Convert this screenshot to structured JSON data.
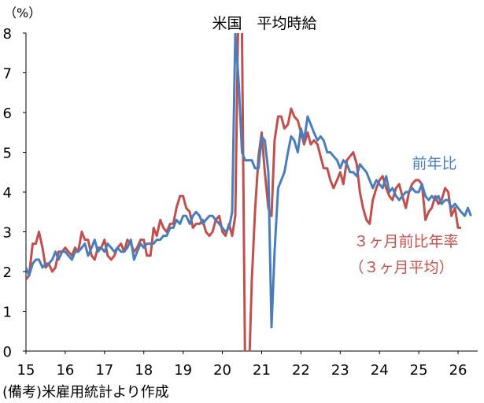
{
  "chart_data": {
    "type": "line",
    "title": "米国　平均時給",
    "ylabel": "（%）",
    "xlabel": "",
    "ylim": [
      0,
      8
    ],
    "yticks": [
      "0",
      "1",
      "2",
      "3",
      "4",
      "5",
      "6",
      "7",
      "8"
    ],
    "x_range": [
      2015.0,
      2026.5
    ],
    "xticks": [
      {
        "label": "15",
        "x": 2015.0
      },
      {
        "label": "16",
        "x": 2016.0
      },
      {
        "label": "17",
        "x": 2017.0
      },
      {
        "label": "18",
        "x": 2018.0
      },
      {
        "label": "19",
        "x": 2019.0
      },
      {
        "label": "20",
        "x": 2020.0
      },
      {
        "label": "21",
        "x": 2021.0
      },
      {
        "label": "22",
        "x": 2022.0
      },
      {
        "label": "23",
        "x": 2023.0
      },
      {
        "label": "24",
        "x": 2024.0
      },
      {
        "label": "25",
        "x": 2025.0
      },
      {
        "label": "26",
        "x": 2026.0
      }
    ],
    "grid": false,
    "series": [
      {
        "name": "前年比",
        "color": "#4a7ebb",
        "values": [
          [
            2015.0,
            2.1
          ],
          [
            2015.08,
            1.9
          ],
          [
            2015.17,
            2.2
          ],
          [
            2015.25,
            2.3
          ],
          [
            2015.33,
            2.3
          ],
          [
            2015.42,
            2.1
          ],
          [
            2015.5,
            2.2
          ],
          [
            2015.58,
            2.2
          ],
          [
            2015.67,
            2.3
          ],
          [
            2015.75,
            2.5
          ],
          [
            2015.83,
            2.3
          ],
          [
            2015.92,
            2.5
          ],
          [
            2016.0,
            2.5
          ],
          [
            2016.08,
            2.4
          ],
          [
            2016.17,
            2.3
          ],
          [
            2016.25,
            2.5
          ],
          [
            2016.33,
            2.5
          ],
          [
            2016.42,
            2.6
          ],
          [
            2016.5,
            2.7
          ],
          [
            2016.58,
            2.4
          ],
          [
            2016.67,
            2.6
          ],
          [
            2016.75,
            2.8
          ],
          [
            2016.83,
            2.5
          ],
          [
            2016.92,
            2.6
          ],
          [
            2017.0,
            2.5
          ],
          [
            2017.08,
            2.7
          ],
          [
            2017.17,
            2.6
          ],
          [
            2017.25,
            2.5
          ],
          [
            2017.33,
            2.6
          ],
          [
            2017.42,
            2.5
          ],
          [
            2017.5,
            2.5
          ],
          [
            2017.58,
            2.6
          ],
          [
            2017.67,
            2.8
          ],
          [
            2017.75,
            2.3
          ],
          [
            2017.83,
            2.5
          ],
          [
            2017.92,
            2.7
          ],
          [
            2018.0,
            2.6
          ],
          [
            2018.08,
            2.7
          ],
          [
            2018.17,
            2.7
          ],
          [
            2018.25,
            2.7
          ],
          [
            2018.33,
            2.8
          ],
          [
            2018.42,
            2.8
          ],
          [
            2018.5,
            2.9
          ],
          [
            2018.58,
            2.9
          ],
          [
            2018.67,
            3.1
          ],
          [
            2018.75,
            3.1
          ],
          [
            2018.83,
            3.3
          ],
          [
            2018.92,
            3.2
          ],
          [
            2019.0,
            3.4
          ],
          [
            2019.08,
            3.4
          ],
          [
            2019.17,
            3.2
          ],
          [
            2019.25,
            3.4
          ],
          [
            2019.33,
            3.5
          ],
          [
            2019.42,
            3.4
          ],
          [
            2019.5,
            3.2
          ],
          [
            2019.58,
            3.3
          ],
          [
            2019.67,
            3.4
          ],
          [
            2019.75,
            3.4
          ],
          [
            2019.83,
            3.3
          ],
          [
            2019.92,
            3.2
          ],
          [
            2020.0,
            3.1
          ],
          [
            2020.08,
            3.0
          ],
          [
            2020.17,
            3.1
          ],
          [
            2020.25,
            3.5
          ],
          [
            2020.33,
            8.0
          ],
          [
            2020.42,
            6.7
          ],
          [
            2020.5,
            5.0
          ],
          [
            2020.58,
            4.8
          ],
          [
            2020.67,
            4.8
          ],
          [
            2020.75,
            4.8
          ],
          [
            2020.83,
            4.6
          ],
          [
            2020.92,
            4.6
          ],
          [
            2021.0,
            5.4
          ],
          [
            2021.08,
            5.3
          ],
          [
            2021.17,
            4.5
          ],
          [
            2021.25,
            0.6
          ],
          [
            2021.33,
            2.5
          ],
          [
            2021.42,
            4.1
          ],
          [
            2021.5,
            4.3
          ],
          [
            2021.58,
            4.5
          ],
          [
            2021.67,
            5.0
          ],
          [
            2021.75,
            5.4
          ],
          [
            2021.83,
            5.3
          ],
          [
            2021.92,
            5.0
          ],
          [
            2022.0,
            5.6
          ],
          [
            2022.08,
            5.3
          ],
          [
            2022.17,
            5.9
          ],
          [
            2022.25,
            5.7
          ],
          [
            2022.33,
            5.5
          ],
          [
            2022.42,
            5.3
          ],
          [
            2022.5,
            5.4
          ],
          [
            2022.58,
            5.3
          ],
          [
            2022.67,
            5.0
          ],
          [
            2022.75,
            5.0
          ],
          [
            2022.83,
            4.9
          ],
          [
            2022.92,
            4.8
          ],
          [
            2023.0,
            4.6
          ],
          [
            2023.08,
            4.8
          ],
          [
            2023.17,
            4.7
          ],
          [
            2023.25,
            4.5
          ],
          [
            2023.33,
            4.5
          ],
          [
            2023.42,
            4.4
          ],
          [
            2023.5,
            4.7
          ],
          [
            2023.58,
            4.6
          ],
          [
            2023.67,
            4.5
          ],
          [
            2023.75,
            4.3
          ],
          [
            2023.83,
            4.1
          ],
          [
            2023.92,
            4.3
          ],
          [
            2024.0,
            4.2
          ],
          [
            2024.08,
            4.1
          ],
          [
            2024.17,
            4.4
          ],
          [
            2024.25,
            4.0
          ],
          [
            2024.33,
            4.1
          ],
          [
            2024.42,
            3.9
          ],
          [
            2024.5,
            3.8
          ],
          [
            2024.58,
            3.9
          ],
          [
            2024.67,
            4.0
          ],
          [
            2024.75,
            4.0
          ],
          [
            2024.83,
            4.1
          ],
          [
            2024.92,
            4.0
          ],
          [
            2025.0,
            4.0
          ],
          [
            2025.08,
            4.2
          ],
          [
            2025.17,
            3.9
          ],
          [
            2025.25,
            3.8
          ],
          [
            2025.33,
            3.9
          ],
          [
            2025.42,
            3.8
          ],
          [
            2025.5,
            3.9
          ],
          [
            2025.58,
            3.7
          ],
          [
            2025.67,
            3.8
          ],
          [
            2025.75,
            3.8
          ],
          [
            2025.83,
            3.6
          ],
          [
            2025.92,
            3.7
          ],
          [
            2026.0,
            3.6
          ],
          [
            2026.08,
            3.5
          ],
          [
            2026.17,
            3.4
          ],
          [
            2026.25,
            3.6
          ],
          [
            2026.33,
            3.4
          ]
        ]
      },
      {
        "name": "３ヶ月前比年率（３ヶ月平均）",
        "color": "#c0504d",
        "values": [
          [
            2015.0,
            1.8
          ],
          [
            2015.08,
            1.9
          ],
          [
            2015.17,
            2.7
          ],
          [
            2015.25,
            2.7
          ],
          [
            2015.33,
            3.0
          ],
          [
            2015.42,
            2.6
          ],
          [
            2015.5,
            2.1
          ],
          [
            2015.58,
            2.2
          ],
          [
            2015.67,
            2.0
          ],
          [
            2015.75,
            2.1
          ],
          [
            2015.83,
            2.5
          ],
          [
            2015.92,
            2.5
          ],
          [
            2016.0,
            2.6
          ],
          [
            2016.08,
            2.5
          ],
          [
            2016.17,
            2.4
          ],
          [
            2016.25,
            2.6
          ],
          [
            2016.33,
            2.5
          ],
          [
            2016.42,
            3.0
          ],
          [
            2016.5,
            2.8
          ],
          [
            2016.58,
            2.8
          ],
          [
            2016.67,
            2.4
          ],
          [
            2016.75,
            2.3
          ],
          [
            2016.83,
            2.6
          ],
          [
            2016.92,
            2.6
          ],
          [
            2017.0,
            2.8
          ],
          [
            2017.08,
            2.4
          ],
          [
            2017.17,
            2.3
          ],
          [
            2017.25,
            2.4
          ],
          [
            2017.33,
            2.6
          ],
          [
            2017.42,
            2.7
          ],
          [
            2017.5,
            2.5
          ],
          [
            2017.58,
            2.8
          ],
          [
            2017.67,
            2.7
          ],
          [
            2017.75,
            2.5
          ],
          [
            2017.83,
            2.6
          ],
          [
            2017.92,
            2.8
          ],
          [
            2018.0,
            2.8
          ],
          [
            2018.08,
            2.4
          ],
          [
            2018.17,
            2.4
          ],
          [
            2018.25,
            3.1
          ],
          [
            2018.33,
            2.9
          ],
          [
            2018.42,
            3.3
          ],
          [
            2018.5,
            3.1
          ],
          [
            2018.58,
            3.0
          ],
          [
            2018.67,
            3.2
          ],
          [
            2018.75,
            3.2
          ],
          [
            2018.83,
            3.6
          ],
          [
            2018.92,
            3.9
          ],
          [
            2019.0,
            3.9
          ],
          [
            2019.08,
            3.6
          ],
          [
            2019.17,
            3.5
          ],
          [
            2019.25,
            3.1
          ],
          [
            2019.33,
            3.2
          ],
          [
            2019.42,
            3.2
          ],
          [
            2019.5,
            3.3
          ],
          [
            2019.58,
            3.0
          ],
          [
            2019.67,
            2.9
          ],
          [
            2019.75,
            3.0
          ],
          [
            2019.83,
            3.3
          ],
          [
            2019.92,
            3.4
          ],
          [
            2020.0,
            3.0
          ],
          [
            2020.08,
            2.9
          ],
          [
            2020.17,
            3.2
          ],
          [
            2020.25,
            2.9
          ],
          [
            2020.33,
            3.4
          ],
          [
            2020.42,
            9.5
          ],
          [
            2020.5,
            8.0
          ],
          [
            2020.58,
            -0.5
          ],
          [
            2020.67,
            -0.8
          ],
          [
            2020.75,
            1.8
          ],
          [
            2020.83,
            3.5
          ],
          [
            2020.92,
            4.9
          ],
          [
            2021.0,
            5.5
          ],
          [
            2021.08,
            4.5
          ],
          [
            2021.17,
            3.6
          ],
          [
            2021.25,
            3.4
          ],
          [
            2021.33,
            5.3
          ],
          [
            2021.42,
            5.9
          ],
          [
            2021.5,
            5.9
          ],
          [
            2021.58,
            5.6
          ],
          [
            2021.67,
            5.7
          ],
          [
            2021.75,
            6.1
          ],
          [
            2021.83,
            5.9
          ],
          [
            2021.92,
            5.8
          ],
          [
            2022.0,
            5.5
          ],
          [
            2022.08,
            5.2
          ],
          [
            2022.17,
            5.5
          ],
          [
            2022.25,
            5.2
          ],
          [
            2022.33,
            5.3
          ],
          [
            2022.42,
            5.2
          ],
          [
            2022.5,
            4.9
          ],
          [
            2022.58,
            4.6
          ],
          [
            2022.67,
            4.6
          ],
          [
            2022.75,
            4.3
          ],
          [
            2022.83,
            4.1
          ],
          [
            2022.92,
            4.3
          ],
          [
            2023.0,
            4.5
          ],
          [
            2023.08,
            4.2
          ],
          [
            2023.17,
            4.8
          ],
          [
            2023.25,
            4.9
          ],
          [
            2023.33,
            5.0
          ],
          [
            2023.42,
            4.7
          ],
          [
            2023.5,
            4.0
          ],
          [
            2023.58,
            3.6
          ],
          [
            2023.67,
            3.3
          ],
          [
            2023.75,
            3.2
          ],
          [
            2023.83,
            3.8
          ],
          [
            2023.92,
            4.1
          ],
          [
            2024.0,
            4.3
          ],
          [
            2024.08,
            4.4
          ],
          [
            2024.17,
            4.1
          ],
          [
            2024.25,
            3.9
          ],
          [
            2024.33,
            3.8
          ],
          [
            2024.42,
            4.1
          ],
          [
            2024.5,
            4.2
          ],
          [
            2024.58,
            3.9
          ],
          [
            2024.67,
            3.6
          ],
          [
            2024.75,
            4.0
          ],
          [
            2024.83,
            4.2
          ],
          [
            2024.92,
            4.3
          ],
          [
            2025.0,
            4.3
          ],
          [
            2025.08,
            4.2
          ],
          [
            2025.17,
            3.3
          ],
          [
            2025.25,
            3.5
          ],
          [
            2025.33,
            3.6
          ],
          [
            2025.42,
            3.9
          ],
          [
            2025.5,
            3.7
          ],
          [
            2025.58,
            3.8
          ],
          [
            2025.67,
            4.1
          ],
          [
            2025.75,
            4.0
          ],
          [
            2025.83,
            3.4
          ],
          [
            2025.92,
            3.6
          ],
          [
            2026.0,
            3.1
          ],
          [
            2026.08,
            3.1
          ]
        ]
      }
    ],
    "annotations": {
      "series1_label": "前年比",
      "series2_label_line1": "３ヶ月前比年率",
      "series2_label_line2": "（３ヶ月平均）"
    },
    "source_note": "(備考)米雇用統計より作成"
  }
}
